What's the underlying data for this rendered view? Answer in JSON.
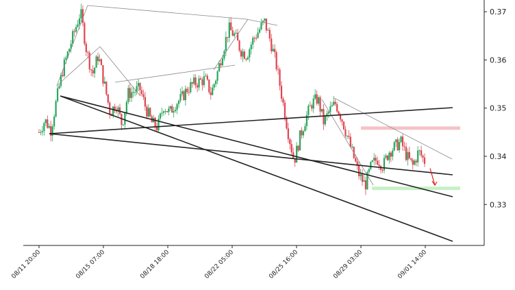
{
  "chart_data": {
    "type": "candlestick",
    "title": "",
    "xlabel": "",
    "ylabel": "",
    "ylim": [
      0.3215,
      0.3713
    ],
    "y_ticks": [
      0.33,
      0.34,
      0.35,
      0.36,
      0.37
    ],
    "y_tick_labels": [
      "0.33",
      "0.34",
      "0.35",
      "0.36",
      "0.37"
    ],
    "y_axis_side": "right",
    "x_tick_labels": [
      "08/11 20:00",
      "08/15 07:00",
      "08/18 18:00",
      "08/22 05:00",
      "08/25 16:00",
      "08/29 03:00",
      "09/01 14:00"
    ],
    "grid": false,
    "colors": {
      "up": "#26a65b",
      "down": "#e0434e",
      "pattern_lines": "#888888",
      "trend_lines": "#222222",
      "resistance_zone": "#f4c2c6",
      "support_zone": "#c6f0c6",
      "forecast_arrow": "#e0201c"
    },
    "price_path": [
      0.345,
      0.3475,
      0.3455,
      0.352,
      0.358,
      0.362,
      0.366,
      0.37,
      0.362,
      0.357,
      0.361,
      0.355,
      0.349,
      0.351,
      0.3465,
      0.353,
      0.3535,
      0.354,
      0.35,
      0.347,
      0.346,
      0.3505,
      0.349,
      0.351,
      0.352,
      0.354,
      0.355,
      0.3555,
      0.356,
      0.353,
      0.357,
      0.362,
      0.3665,
      0.365,
      0.362,
      0.361,
      0.364,
      0.366,
      0.368,
      0.364,
      0.359,
      0.352,
      0.345,
      0.339,
      0.344,
      0.348,
      0.351,
      0.352,
      0.347,
      0.3495,
      0.351,
      0.348,
      0.344,
      0.34,
      0.336,
      0.334,
      0.338,
      0.3395,
      0.338,
      0.341,
      0.342,
      0.343,
      0.34,
      0.338,
      0.341,
      0.339
    ],
    "candles_up": 118,
    "candles_down": 112,
    "pattern_points": [
      {
        "date_index": 2,
        "price": 0.354
      },
      {
        "date_index": 7,
        "price": 0.37
      },
      {
        "date_index": 32,
        "price": 0.3665
      },
      {
        "date_index": 38,
        "price": 0.3663
      }
    ],
    "trend_lines": [
      {
        "from": {
          "x": "08/11 20:00",
          "y": 0.3443
        },
        "to": {
          "x": "09/01 14:00",
          "y": 0.3494
        }
      },
      {
        "from": {
          "x": "08/11 20:00",
          "y": 0.3443
        },
        "to": {
          "x": "09/01 14:00",
          "y": 0.3362
        }
      },
      {
        "from": {
          "x": "08/12 16:00",
          "y": 0.3519
        },
        "to": {
          "x": "09/01 14:00",
          "y": 0.3316
        }
      },
      {
        "from": {
          "x": "08/12 16:00",
          "y": 0.3519
        },
        "to": {
          "x": "09/01 14:00",
          "y": 0.3232
        }
      }
    ],
    "zones": [
      {
        "kind": "resistance",
        "y_low": 0.3455,
        "y_high": 0.3462
      },
      {
        "kind": "support",
        "y_low": 0.333,
        "y_high": 0.3337
      }
    ],
    "forecast_arrow": {
      "from": 0.3375,
      "to": 0.334
    }
  }
}
